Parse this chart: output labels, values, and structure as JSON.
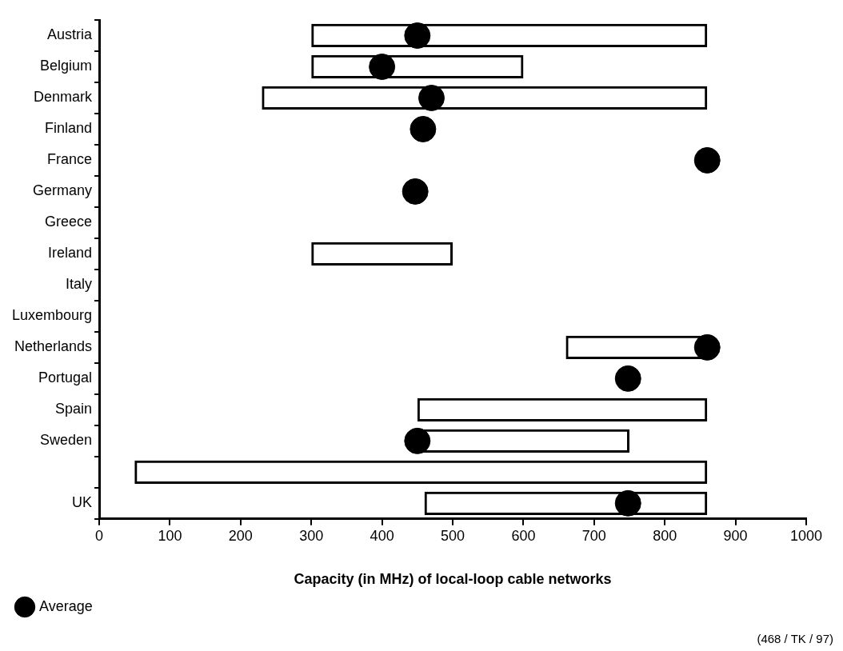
{
  "chart_data": {
    "type": "bar",
    "orientation": "horizontal",
    "xlabel": "Capacity (in MHz) of local-loop cable networks",
    "categories": [
      "Austria",
      "Belgium",
      "Denmark",
      "Finland",
      "France",
      "Germany",
      "Greece",
      "Ireland",
      "Italy",
      "Luxembourg",
      "Netherlands",
      "Portugal",
      "Spain",
      "Sweden",
      null,
      "UK"
    ],
    "series": [
      {
        "color": "#000000",
        "base": [
          300,
          300,
          230,
          null,
          null,
          null,
          null,
          300,
          null,
          null,
          660,
          null,
          450,
          450,
          50,
          460
        ],
        "values": [
          560,
          300,
          630,
          null,
          null,
          null,
          null,
          200,
          null,
          null,
          200,
          null,
          410,
          300,
          810,
          400
        ]
      },
      {
        "type": "scatter",
        "name": "Average",
        "color": "#000000",
        "values": [
          450,
          400,
          470,
          458,
          860,
          447,
          null,
          null,
          null,
          null,
          860,
          748,
          null,
          450,
          null,
          748
        ]
      }
    ],
    "xlim": [
      0,
      1000
    ],
    "xticks": [
      0,
      100,
      200,
      300,
      400,
      500,
      600,
      700,
      800,
      900,
      {
        "value": 1000,
        "label": "1000"
      }
    ],
    "marker": "circle",
    "legend": "bottom left",
    "grid": false,
    "annotations": [
      "(468 / TK / 97)"
    ]
  }
}
